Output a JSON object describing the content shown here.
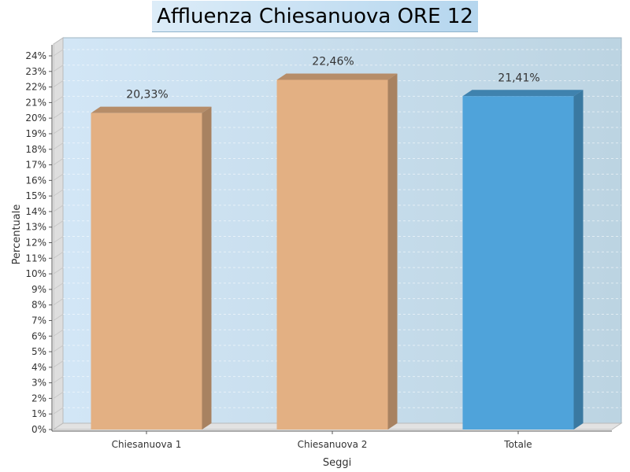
{
  "chart_data": {
    "type": "bar",
    "title": "Affluenza Chiesanuova ORE 12",
    "xlabel": "Seggi",
    "ylabel": "Percentuale",
    "categories": [
      "Chiesanuova 1",
      "Chiesanuova 2",
      "Totale"
    ],
    "values": [
      20.33,
      22.46,
      21.41
    ],
    "data_labels": [
      "20,33%",
      "22,46%",
      "21,41%"
    ],
    "colors": [
      "#e3b083",
      "#e3b083",
      "#4fa3da"
    ],
    "ylim": [
      0,
      24
    ],
    "yticks": [
      "0%",
      "1%",
      "2%",
      "3%",
      "4%",
      "5%",
      "6%",
      "7%",
      "8%",
      "9%",
      "10%",
      "11%",
      "12%",
      "13%",
      "14%",
      "15%",
      "16%",
      "17%",
      "18%",
      "19%",
      "20%",
      "21%",
      "22%",
      "23%",
      "24%"
    ],
    "grid": true,
    "style": "3d"
  }
}
